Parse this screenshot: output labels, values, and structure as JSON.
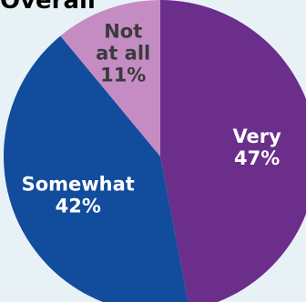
{
  "chart_data": {
    "type": "pie",
    "title": "Overall",
    "slices": [
      {
        "label_lines": [
          "Very"
        ],
        "value": 47,
        "value_label": "47%",
        "color": "#6b2e8a",
        "text_color": "#ffffff"
      },
      {
        "label_lines": [
          "Somewhat"
        ],
        "value": 42,
        "value_label": "42%",
        "color": "#124c9c",
        "text_color": "#ffffff"
      },
      {
        "label_lines": [
          "Not",
          "at all"
        ],
        "value": 11,
        "value_label": "11%",
        "color": "#c58cc4",
        "text_color": "#3a3a3a"
      }
    ],
    "start": "12 o'clock",
    "direction": "clockwise",
    "legend": "none (labels on slices)"
  }
}
